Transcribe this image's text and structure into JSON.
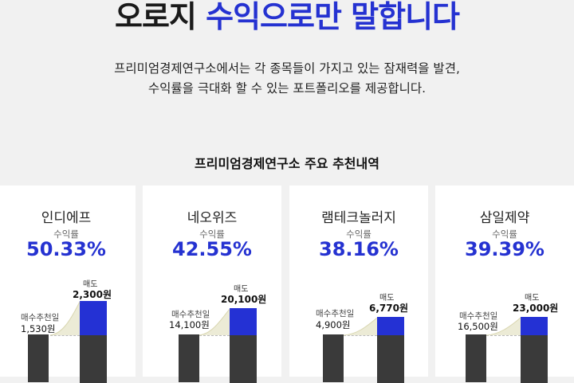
{
  "headline": {
    "part1": "오로지 ",
    "accent": "수익으로만 말합니다"
  },
  "description": {
    "line1": "프리미엄경제연구소에서는 각 종목들이 가지고 있는 잠재력을 발견,",
    "line2": "수익률을 극대화 할 수 있는 포트폴리오를 제공합니다."
  },
  "section_title": "프리미엄경제연구소 주요 추천내역",
  "cards": [
    {
      "name": "인디에프",
      "rate_label": "수익률",
      "rate": "50.33%",
      "buy_label": "매수추천일",
      "buy_price": "1,530원",
      "sell_label": "매도",
      "sell_price": "2,300원",
      "gain_ratio": 0.5033
    },
    {
      "name": "네오위즈",
      "rate_label": "수익률",
      "rate": "42.55%",
      "buy_label": "매수추천일",
      "buy_price": "14,100원",
      "sell_label": "매도",
      "sell_price": "20,100원",
      "gain_ratio": 0.4255
    },
    {
      "name": "램테크놀러지",
      "rate_label": "수익률",
      "rate": "38.16%",
      "buy_label": "매수추천일",
      "buy_price": "4,900원",
      "sell_label": "매도",
      "sell_price": "6,770원",
      "gain_ratio": 0.3816
    },
    {
      "name": "삼일제약",
      "rate_label": "수익률",
      "rate": "39.39%",
      "buy_label": "매수추천일",
      "buy_price": "16,500원",
      "sell_label": "매도",
      "sell_price": "23,000원",
      "gain_ratio": 0.3939
    }
  ],
  "colors": {
    "accent": "#2532d1",
    "bar_dark": "#3a3a3a",
    "bar_blue": "#2431d4",
    "page_bg": "#f1f1f1"
  }
}
